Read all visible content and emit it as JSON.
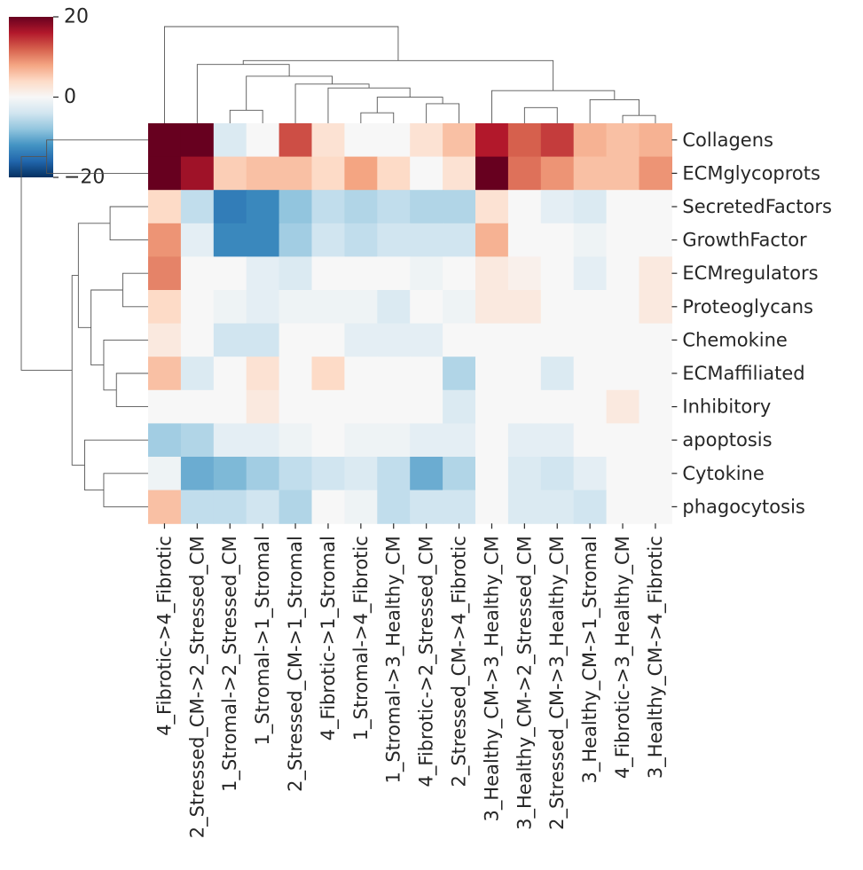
{
  "chart_data": {
    "type": "heatmap",
    "title": "",
    "xlabel": "",
    "ylabel": "",
    "colorbar": {
      "colormap": "RdBu_r",
      "vmin": -20,
      "vmax": 20,
      "ticks": [
        20,
        0,
        -20
      ],
      "tick_labels": [
        "20",
        "0",
        "−20"
      ]
    },
    "rows": [
      "Collagens",
      "ECMglycoprots",
      "SecretedFactors",
      "GrowthFactor",
      "ECMregulators",
      "Proteoglycans",
      "Chemokine",
      "ECMaffiliated",
      "Inhibitory",
      "apoptosis",
      "Cytokine",
      "phagocytosis"
    ],
    "columns": [
      "4_Fibrotic->4_Fibrotic",
      "2_Stressed_CM->2_Stressed_CM",
      "1_Stromal->2_Stressed_CM",
      "1_Stromal->1_Stromal",
      "2_Stressed_CM->1_Stromal",
      "4_Fibrotic->1_Stromal",
      "1_Stromal->4_Fibrotic",
      "1_Stromal->3_Healthy_CM",
      "4_Fibrotic->2_Stressed_CM",
      "2_Stressed_CM->4_Fibrotic",
      "3_Healthy_CM->3_Healthy_CM",
      "3_Healthy_CM->2_Stressed_CM",
      "2_Stressed_CM->3_Healthy_CM",
      "3_Healthy_CM->1_Stromal",
      "4_Fibrotic->3_Healthy_CM",
      "3_Healthy_CM->4_Fibrotic"
    ],
    "values": [
      [
        22,
        22,
        -3,
        0,
        13,
        3,
        0,
        0,
        3,
        6,
        16,
        12,
        14,
        7,
        6,
        7
      ],
      [
        22,
        17,
        5,
        6,
        6,
        4,
        8,
        4,
        0,
        3,
        20,
        11,
        9,
        6,
        6,
        9
      ],
      [
        4,
        -5,
        -14,
        -13,
        -8,
        -5,
        -6,
        -5,
        -6,
        -6,
        3,
        0,
        -2,
        -3,
        0,
        0
      ],
      [
        9,
        -2,
        -13,
        -13,
        -7,
        -4,
        -5,
        -4,
        -4,
        -4,
        7,
        0,
        0,
        -1,
        0,
        0
      ],
      [
        10,
        0,
        0,
        -2,
        -3,
        0,
        0,
        0,
        -1,
        0,
        2,
        1,
        0,
        -2,
        0,
        2
      ],
      [
        4,
        0,
        -1,
        -2,
        -1,
        -1,
        -1,
        -3,
        0,
        -1,
        2,
        2,
        0,
        0,
        0,
        2
      ],
      [
        2,
        0,
        -4,
        -4,
        0,
        0,
        -2,
        -2,
        -2,
        0,
        0,
        0,
        0,
        0,
        0,
        0
      ],
      [
        6,
        -3,
        0,
        3,
        0,
        4,
        0,
        0,
        0,
        -6,
        0,
        0,
        -3,
        0,
        0,
        0
      ],
      [
        0,
        0,
        0,
        2,
        0,
        0,
        0,
        0,
        0,
        -3,
        0,
        0,
        0,
        0,
        2,
        0
      ],
      [
        -7,
        -6,
        -2,
        -2,
        -1,
        0,
        -1,
        -1,
        -2,
        -2,
        0,
        -2,
        -2,
        0,
        0,
        0
      ],
      [
        -1,
        -10,
        -9,
        -7,
        -5,
        -4,
        -3,
        -5,
        -10,
        -6,
        0,
        -3,
        -4,
        -2,
        0,
        0
      ],
      [
        6,
        -5,
        -5,
        -4,
        -6,
        0,
        -1,
        -5,
        -4,
        -4,
        0,
        -3,
        -3,
        -4,
        0,
        0
      ]
    ],
    "row_dendrogram": {
      "leaf_order": [
        0,
        1,
        2,
        3,
        4,
        5,
        6,
        7,
        8,
        9,
        10,
        11
      ],
      "linkage": [
        [
          4,
          5,
          0.2
        ],
        [
          7,
          8,
          0.25
        ],
        [
          2,
          3,
          0.3
        ],
        [
          10,
          11,
          0.35
        ],
        [
          6,
          13,
          0.35
        ],
        [
          12,
          16,
          0.45
        ],
        [
          9,
          15,
          0.5
        ],
        [
          14,
          17,
          0.55
        ],
        [
          19,
          18,
          0.6
        ],
        [
          0,
          1,
          0.8
        ],
        [
          20,
          21,
          1.0
        ]
      ]
    },
    "column_dendrogram": {
      "leaf_order": [
        0,
        1,
        2,
        3,
        4,
        5,
        6,
        7,
        8,
        9,
        10,
        11,
        12,
        13,
        14,
        15
      ],
      "linkage": [
        [
          2,
          3,
          0.1
        ],
        [
          6,
          7,
          0.08
        ],
        [
          11,
          12,
          0.12
        ],
        [
          14,
          15,
          0.06
        ],
        [
          13,
          19,
          0.18
        ],
        [
          8,
          9,
          0.15
        ],
        [
          17,
          21,
          0.2
        ],
        [
          5,
          22,
          0.27
        ],
        [
          10,
          20,
          0.25
        ],
        [
          4,
          23,
          0.3
        ],
        [
          16,
          25,
          0.36
        ],
        [
          1,
          26,
          0.45
        ],
        [
          27,
          24,
          0.48
        ],
        [
          0,
          28,
          0.74
        ]
      ]
    }
  }
}
